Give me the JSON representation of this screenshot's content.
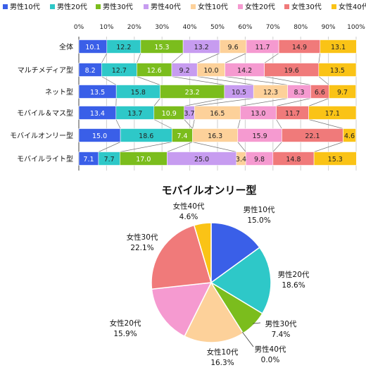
{
  "colors": [
    "#3a5fe8",
    "#2ec8c8",
    "#7bbd1d",
    "#c79cf0",
    "#fdd19a",
    "#f59ad0",
    "#f07a7a",
    "#fac316"
  ],
  "chart_data": [
    {
      "type": "bar",
      "stacked": true,
      "orientation": "horizontal",
      "percent": true,
      "xlim": [
        0,
        100
      ],
      "x_ticks": [
        "0%",
        "10%",
        "20%",
        "30%",
        "40%",
        "50%",
        "60%",
        "70%",
        "80%",
        "90%",
        "100%"
      ],
      "grid": true,
      "legend": "top",
      "categories": [
        "全体",
        "マルチメディア型",
        "ネット型",
        "モバイル＆マス型",
        "モバイルオンリー型",
        "モバイルライト型"
      ],
      "series": [
        {
          "name": "男性10代",
          "values": [
            10.1,
            8.2,
            13.5,
            13.4,
            15.0,
            7.1
          ]
        },
        {
          "name": "男性20代",
          "values": [
            12.2,
            12.7,
            15.8,
            13.7,
            18.6,
            7.7
          ]
        },
        {
          "name": "男性30代",
          "values": [
            15.3,
            12.6,
            23.2,
            10.9,
            7.4,
            17.0
          ]
        },
        {
          "name": "男性40代",
          "values": [
            13.2,
            9.2,
            10.5,
            3.7,
            0.0,
            25.0
          ]
        },
        {
          "name": "女性10代",
          "values": [
            9.6,
            10.0,
            12.3,
            16.5,
            16.3,
            3.4
          ]
        },
        {
          "name": "女性20代",
          "values": [
            11.7,
            14.2,
            8.3,
            13.0,
            15.9,
            9.8
          ]
        },
        {
          "name": "女性30代",
          "values": [
            14.9,
            19.6,
            6.6,
            11.7,
            22.1,
            14.8
          ]
        },
        {
          "name": "女性40代",
          "values": [
            13.1,
            13.5,
            9.7,
            17.1,
            4.6,
            15.3
          ]
        }
      ]
    },
    {
      "type": "pie",
      "title": "モバイルオンリー型",
      "slices": [
        {
          "label": "男性10代",
          "value": 15.0,
          "value_text": "15.0%"
        },
        {
          "label": "男性20代",
          "value": 18.6,
          "value_text": "18.6%"
        },
        {
          "label": "男性30代",
          "value": 7.4,
          "value_text": "7.4%"
        },
        {
          "label": "男性40代",
          "value": 0.0,
          "value_text": "0.0%"
        },
        {
          "label": "女性10代",
          "value": 16.3,
          "value_text": "16.3%"
        },
        {
          "label": "女性20代",
          "value": 15.9,
          "value_text": "15.9%"
        },
        {
          "label": "女性30代",
          "value": 22.1,
          "value_text": "22.1%"
        },
        {
          "label": "女性40代",
          "value": 4.6,
          "value_text": "4.6%"
        }
      ]
    }
  ]
}
